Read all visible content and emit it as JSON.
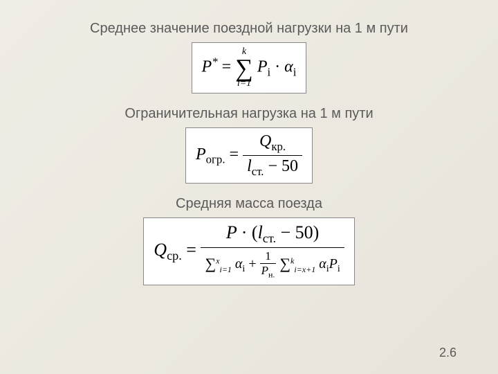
{
  "background_color_start": "#f0ede6",
  "background_color_end": "#e8e4da",
  "text_color": "#5a5a5a",
  "caption_fontsize": 20,
  "formula_fontsize": 24,
  "formula_bg": "#ffffff",
  "formula_border": "#888888",
  "sections": {
    "s1": {
      "caption": "Среднее значение поездной нагрузки на 1 м пути",
      "formula": {
        "lhs_var": "P",
        "lhs_sup": "*",
        "sum_lower": "i=1",
        "sum_upper": "k",
        "term1_var": "P",
        "term1_sub": "i",
        "term2_var": "α",
        "term2_sub": "i"
      }
    },
    "s2": {
      "caption": "Ограничительная нагрузка на 1 м пути",
      "formula": {
        "lhs_var": "P",
        "lhs_sub": "огр.",
        "num_var": "Q",
        "num_sub": "кр.",
        "den_var": "l",
        "den_sub": "ст.",
        "den_const": "50"
      }
    },
    "s3": {
      "caption": "Средняя масса поезда",
      "formula": {
        "lhs_var": "Q",
        "lhs_sub": "ср.",
        "num_var1": "P",
        "num_var2": "l",
        "num_sub2": "ст.",
        "num_const": "50",
        "den_sum1_lower": "i=1",
        "den_sum1_upper": "x",
        "den_sum1_var": "α",
        "den_sum1_sub": "i",
        "den_frac_num": "1",
        "den_frac_den_var": "P",
        "den_frac_den_sub": "н.",
        "den_sum2_lower": "i=x+1",
        "den_sum2_upper": "k",
        "den_sum2_var1": "α",
        "den_sum2_sub1": "i",
        "den_sum2_var2": "P",
        "den_sum2_sub2": "i"
      }
    }
  },
  "page_number": "2.6"
}
